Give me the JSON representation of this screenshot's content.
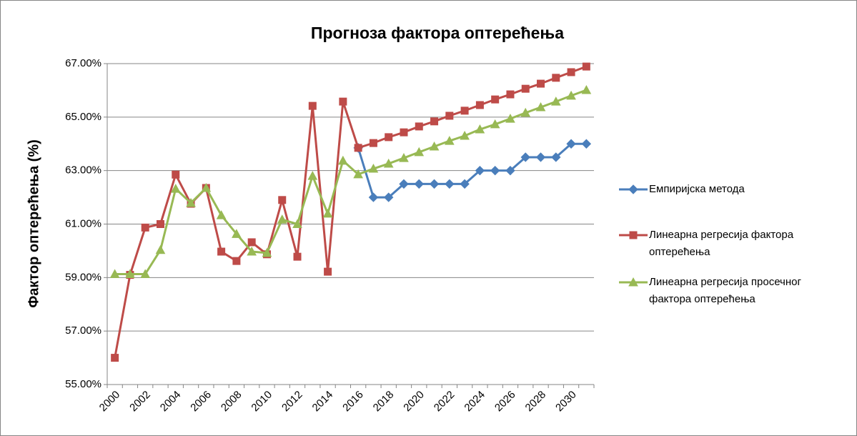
{
  "chart_data": {
    "type": "line",
    "title": "Прогноза фактора оптерећења",
    "y_label": "Фактор оптерећења (%)",
    "categories": [
      "2000",
      null,
      "2002",
      null,
      "2004",
      null,
      "2006",
      null,
      "2008",
      null,
      "2010",
      null,
      "2012",
      null,
      "2014",
      null,
      "2016",
      null,
      "2018",
      null,
      "2020",
      null,
      "2022",
      null,
      "2024",
      null,
      "2026",
      null,
      "2028",
      null,
      "2030",
      null
    ],
    "ylim": [
      55,
      67
    ],
    "yticks": [
      {
        "value": 55,
        "label": "55.00%"
      },
      {
        "value": 57,
        "label": "57.00%"
      },
      {
        "value": 59,
        "label": "59.00%"
      },
      {
        "value": 61,
        "label": "61.00%"
      },
      {
        "value": 63,
        "label": "63.00%"
      },
      {
        "value": 65,
        "label": "65.00%"
      },
      {
        "value": 67,
        "label": "67.00%"
      }
    ],
    "grid": true,
    "legend": "right",
    "series": [
      {
        "name": "Емпиријска метода",
        "color": "#4a7ebb",
        "marker": "diamond",
        "values": [
          null,
          null,
          null,
          null,
          null,
          null,
          null,
          null,
          null,
          null,
          null,
          null,
          null,
          null,
          null,
          null,
          63.85,
          62.0,
          62.0,
          62.5,
          62.5,
          62.5,
          62.5,
          62.5,
          63.0,
          63.0,
          63.0,
          63.5,
          63.5,
          63.5,
          64.0,
          64.0
        ]
      },
      {
        "name": "Линеарна регресија фактора оптерећења",
        "color": "#be4b48",
        "marker": "square",
        "values": [
          56.0,
          59.1,
          60.87,
          61.0,
          62.85,
          61.76,
          62.35,
          59.97,
          59.62,
          60.32,
          59.87,
          61.9,
          59.78,
          65.42,
          59.22,
          65.58,
          63.85,
          64.03,
          64.25,
          64.43,
          64.65,
          64.84,
          65.05,
          65.24,
          65.45,
          65.66,
          65.85,
          66.06,
          66.25,
          66.47,
          66.68,
          66.89
        ]
      },
      {
        "name": "Линеарна регресија просечног фактора оптерећења",
        "color": "#98b954",
        "marker": "triangle",
        "values": [
          59.13,
          59.13,
          59.13,
          60.03,
          62.32,
          61.79,
          62.35,
          61.33,
          60.63,
          59.97,
          59.92,
          61.17,
          61.0,
          62.8,
          61.39,
          63.37,
          62.86,
          63.07,
          63.26,
          63.47,
          63.69,
          63.9,
          64.11,
          64.3,
          64.54,
          64.73,
          64.94,
          65.16,
          65.37,
          65.58,
          65.8,
          66.01
        ]
      }
    ]
  }
}
